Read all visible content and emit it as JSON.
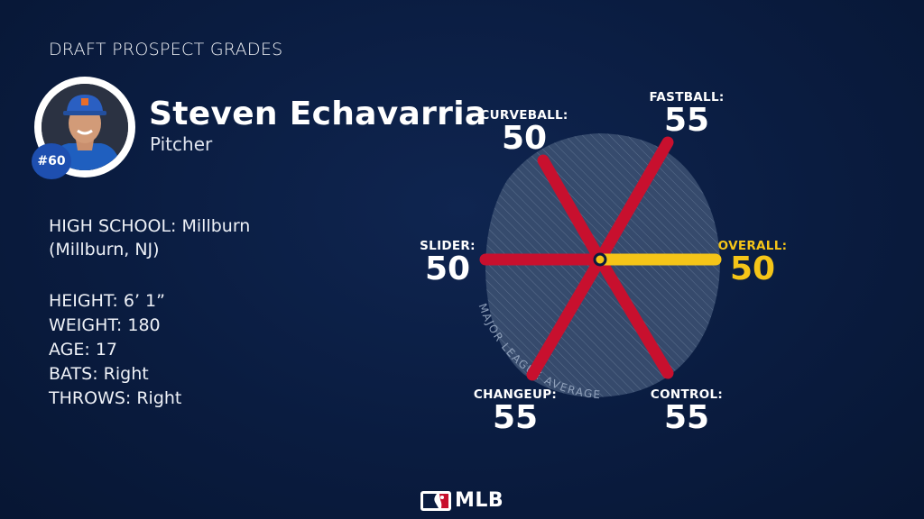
{
  "header": {
    "title": "DRAFT PROSPECT GRADES"
  },
  "player": {
    "name": "Steven Echavarria",
    "position": "Pitcher",
    "number": "#60"
  },
  "details": {
    "high_school_line1": "HIGH SCHOOL: Millburn",
    "high_school_line2": "(Millburn, NJ)",
    "height": "HEIGHT: 6’ 1”",
    "weight": "WEIGHT: 180",
    "age": "AGE: 17",
    "bats": "BATS: Right",
    "throws": "THROWS: Right"
  },
  "grades": {
    "curveball": {
      "label": "CURVEBALL:",
      "value": "50"
    },
    "fastball": {
      "label": "FASTBALL:",
      "value": "55"
    },
    "slider": {
      "label": "SLIDER:",
      "value": "50"
    },
    "overall": {
      "label": "OVERALL:",
      "value": "50"
    },
    "changeup": {
      "label": "CHANGEUP:",
      "value": "55"
    },
    "control": {
      "label": "CONTROL:",
      "value": "55"
    }
  },
  "chart": {
    "average_label": "MAJOR LEAGUE AVERAGE",
    "spoke_color": "#c8102e",
    "overall_color": "#f5c518"
  },
  "footer": {
    "logo_text": "MLB"
  }
}
